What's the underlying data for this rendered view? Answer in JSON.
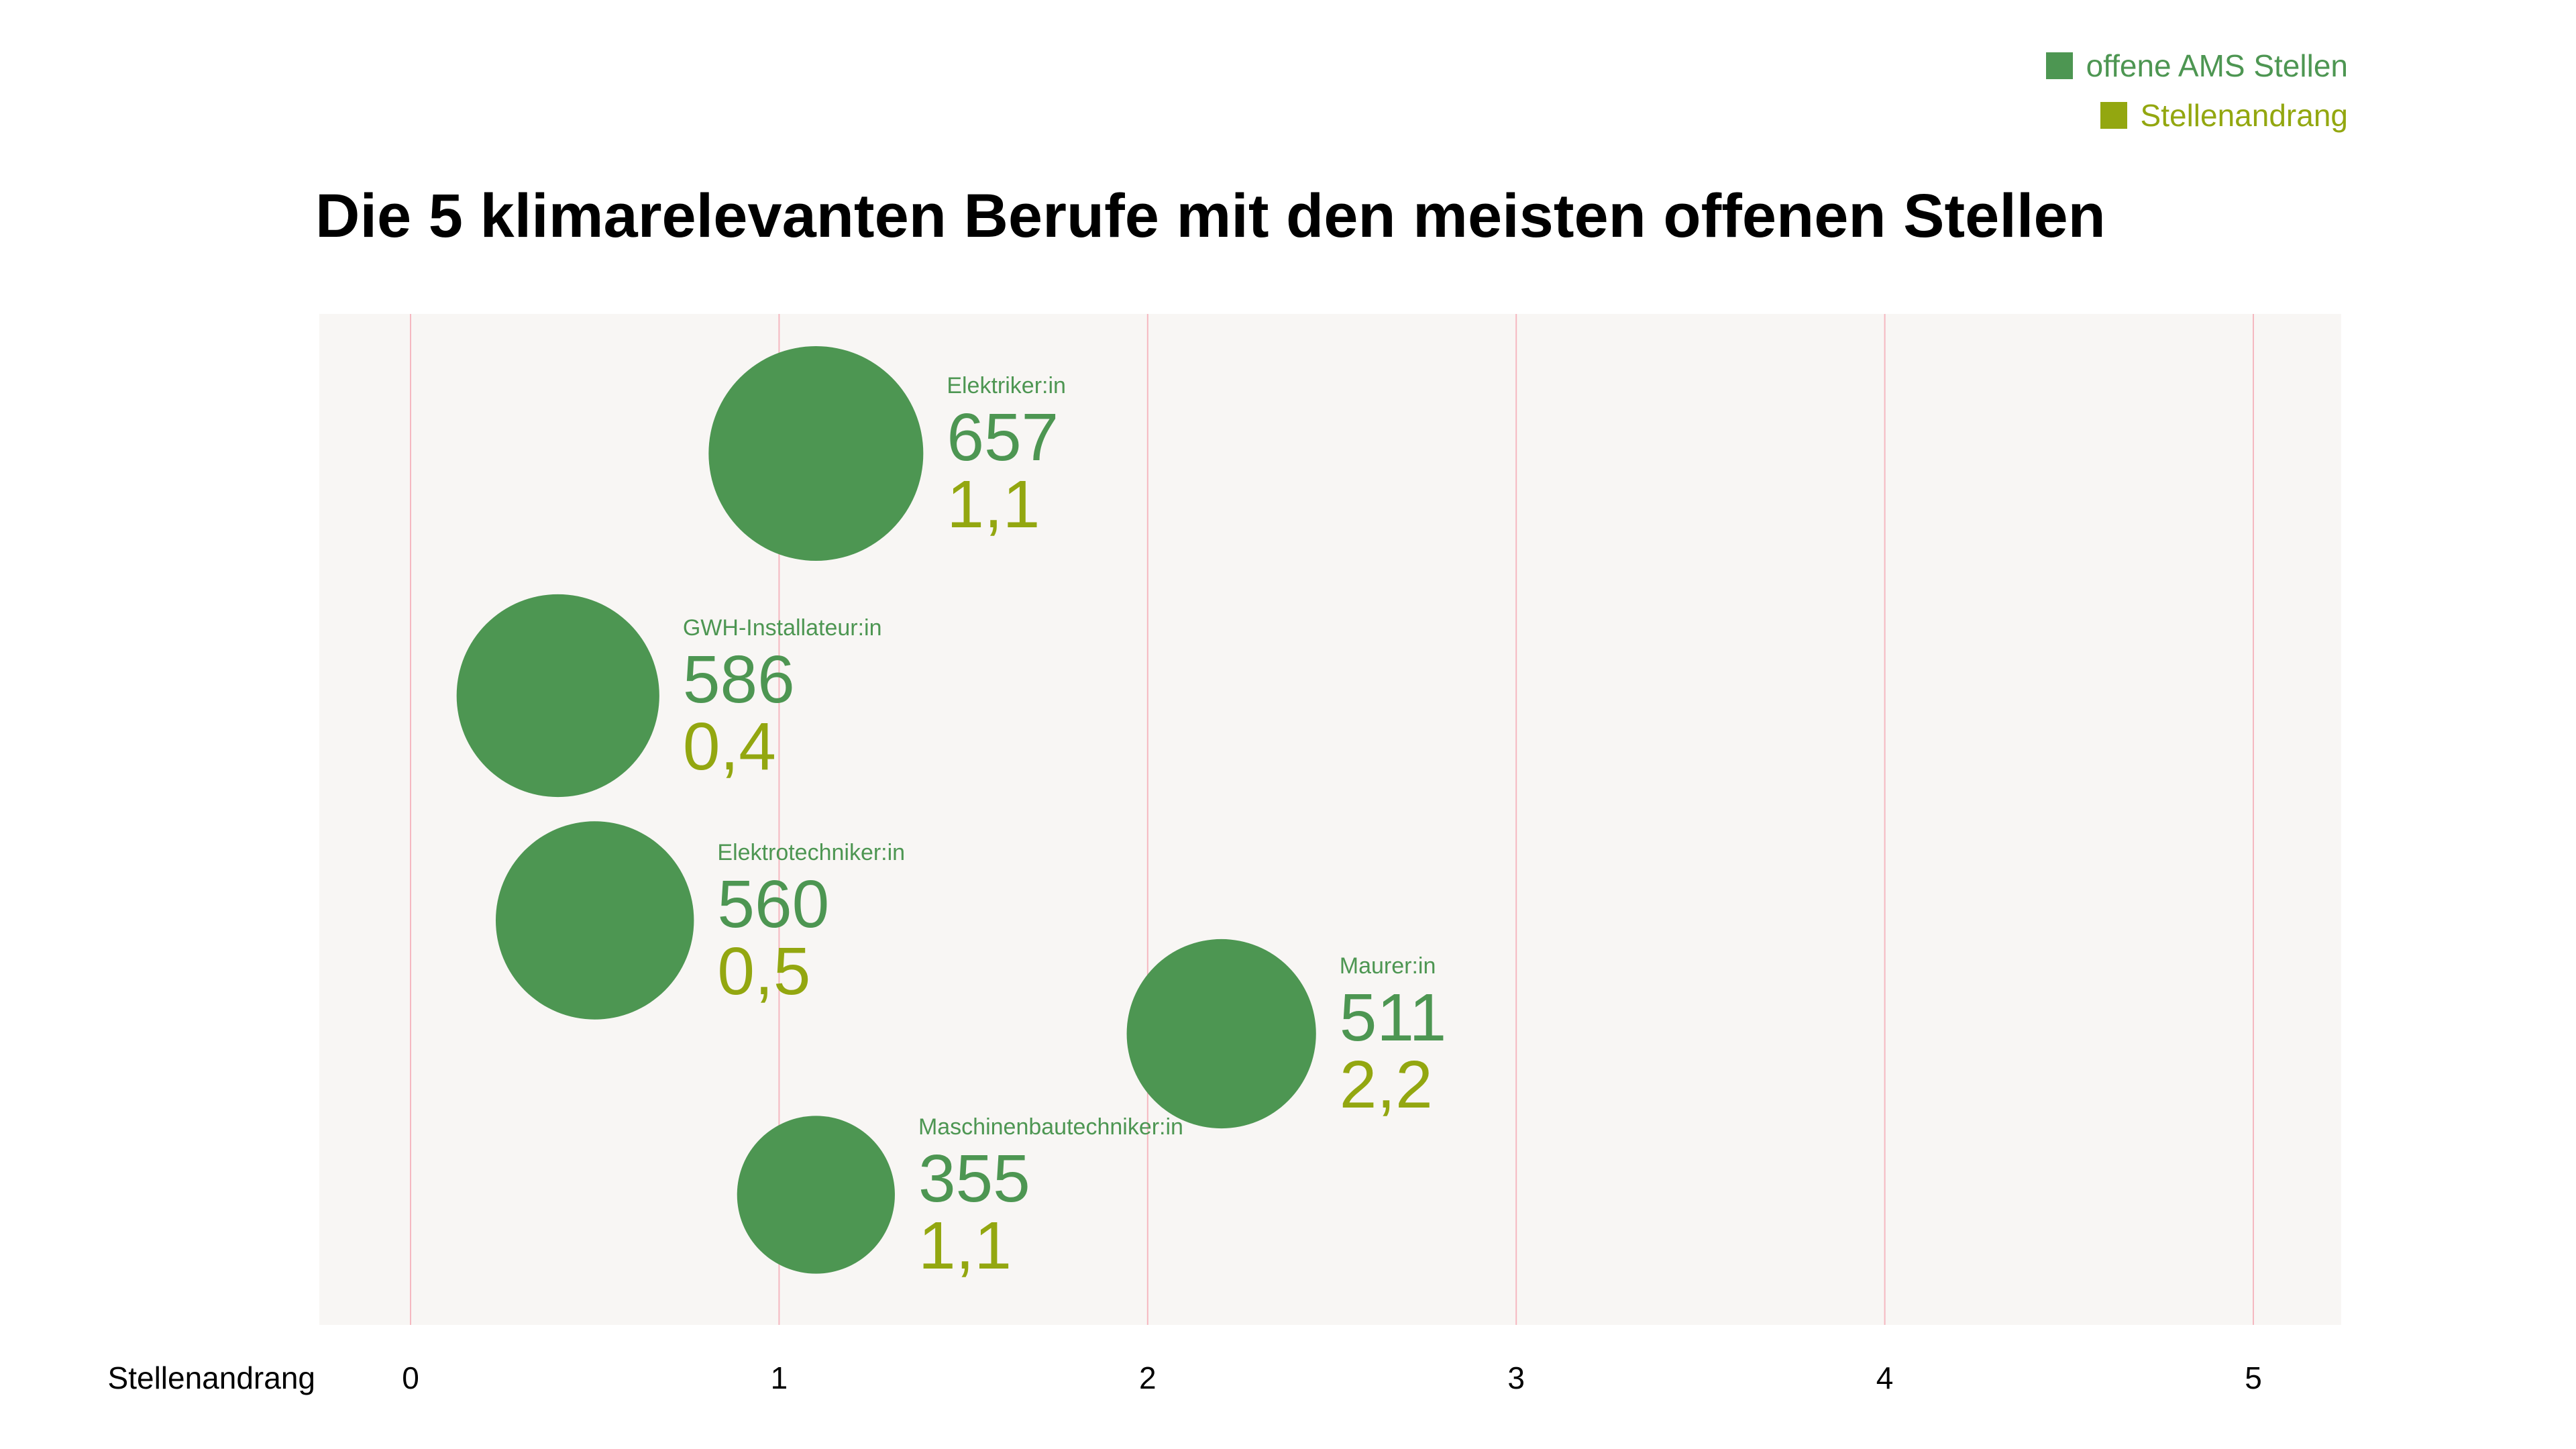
{
  "title": "Die 5 klimarelevanten Berufe mit den meisten offenen Stellen",
  "legend": [
    {
      "label": "offene AMS Stellen",
      "color": "#4d9652"
    },
    {
      "label": "Stellenandrang",
      "color": "#93a710"
    }
  ],
  "colors": {
    "bubble": "#4d9652",
    "andrang": "#93a710",
    "plot_bg": "#f8f6f4",
    "grid": "#f5b8c0"
  },
  "chart_data": {
    "type": "scatter",
    "title": "Die 5 klimarelevanten Berufe mit den meisten offenen Stellen",
    "xlabel": "Stellenandrang",
    "ylabel": "",
    "xlim": [
      0,
      5
    ],
    "x_ticks": [
      "0",
      "1",
      "2",
      "3",
      "4",
      "5"
    ],
    "grid": true,
    "legend_position": "top-right",
    "series": [
      {
        "name": "offene AMS Stellen",
        "field": "offene_stellen"
      },
      {
        "name": "Stellenandrang",
        "field": "stellenandrang"
      }
    ],
    "points": [
      {
        "name": "Elektriker:in",
        "offene_stellen": 657,
        "stellenandrang": 1.1,
        "label_value": "657",
        "label_andrang": "1,1"
      },
      {
        "name": "GWH-Installateur:in",
        "offene_stellen": 586,
        "stellenandrang": 0.4,
        "label_value": "586",
        "label_andrang": "0,4"
      },
      {
        "name": "Elektrotechniker:in",
        "offene_stellen": 560,
        "stellenandrang": 0.5,
        "label_value": "560",
        "label_andrang": "0,5"
      },
      {
        "name": "Maurer:in",
        "offene_stellen": 511,
        "stellenandrang": 2.2,
        "label_value": "511",
        "label_andrang": "2,2"
      },
      {
        "name": "Maschinenbautechniker:in",
        "offene_stellen": 355,
        "stellenandrang": 1.1,
        "label_value": "355",
        "label_andrang": "1,1"
      }
    ]
  }
}
